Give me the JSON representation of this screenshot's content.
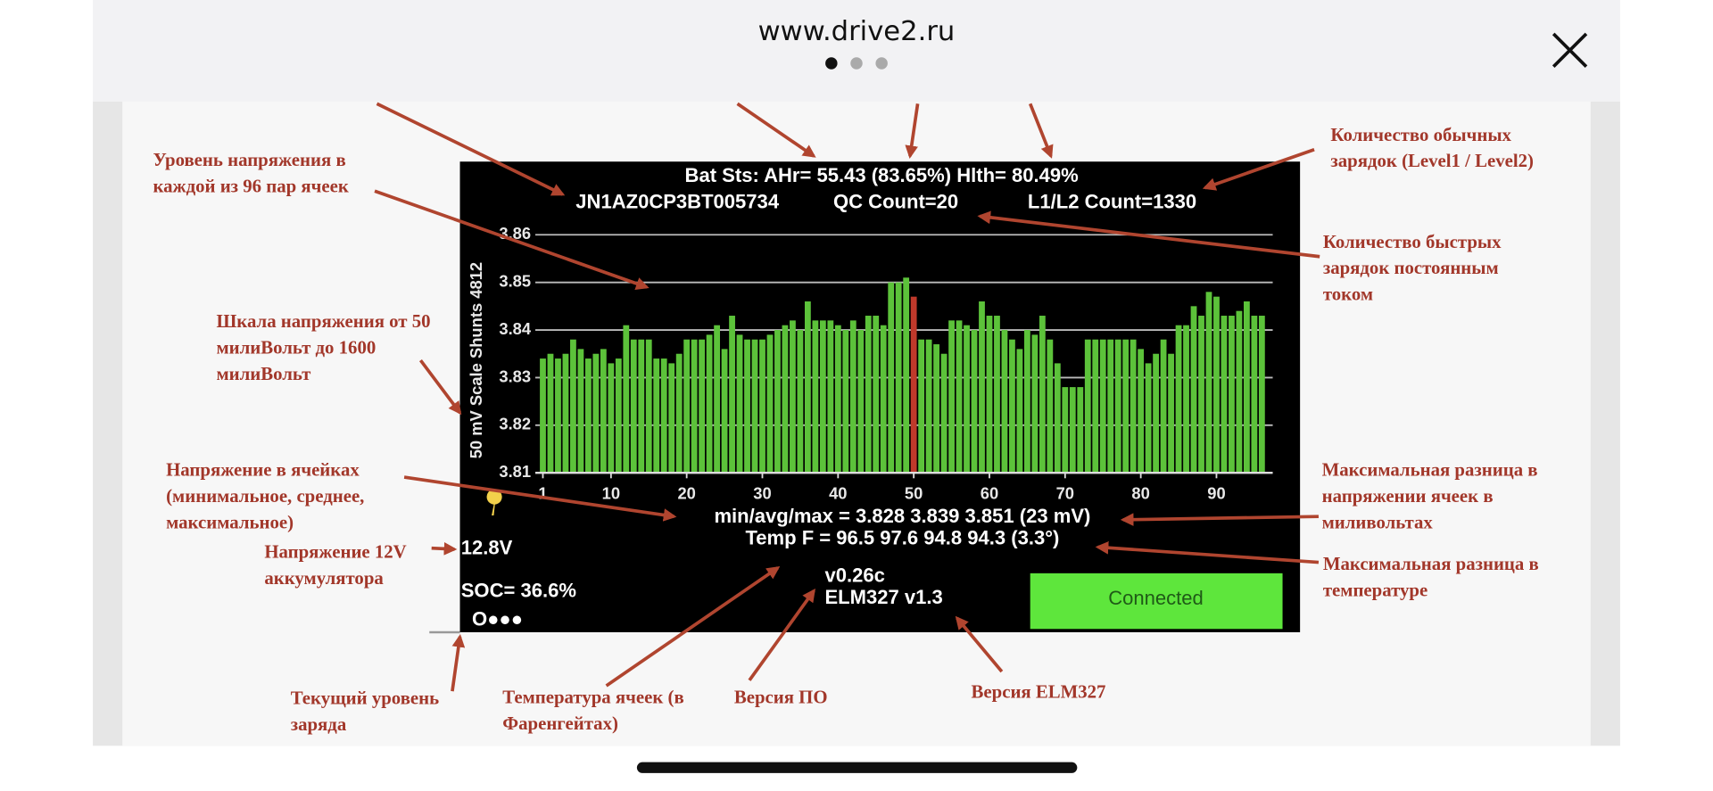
{
  "header": {
    "title": "www.drive2.ru"
  },
  "screen": {
    "status_line": "Bat Sts:  AHr= 55.43 (83.65%) Hlth= 80.49%",
    "vin": "JN1AZ0CP3BT005734",
    "qc_count": "QC Count=20",
    "l1l2_count": "L1/L2 Count=1330",
    "axis_label": "50 mV Scale   Shunts 4812",
    "minavgmax": "min/avg/max = 3.828 3.839 3.851  (23 mV)",
    "temp": "Temp F = 96.5  97.6  94.8  94.3  (3.3°)",
    "voltage_12v": "12.8V",
    "soc": "SOC= 36.6%",
    "indicator": "O●●●",
    "version": "v0.26c",
    "elm": "ELM327 v1.3",
    "button": "Connected"
  },
  "chart_data": {
    "type": "bar",
    "color": "#5cc23a",
    "highlight_cell": 50,
    "highlight_color": "#c0392b",
    "xlim": [
      0,
      97
    ],
    "xticks": [
      1,
      10,
      20,
      30,
      40,
      50,
      60,
      70,
      80,
      90
    ],
    "ylim": [
      3.81,
      3.86
    ],
    "yticks": [
      3.81,
      3.82,
      3.83,
      3.84,
      3.85,
      3.86
    ],
    "grid": true,
    "values": [
      3.834,
      3.835,
      3.834,
      3.835,
      3.838,
      3.836,
      3.834,
      3.835,
      3.836,
      3.833,
      3.834,
      3.841,
      3.838,
      3.838,
      3.838,
      3.834,
      3.834,
      3.833,
      3.835,
      3.838,
      3.838,
      3.838,
      3.839,
      3.841,
      3.836,
      3.843,
      3.839,
      3.838,
      3.838,
      3.838,
      3.839,
      3.84,
      3.841,
      3.842,
      3.84,
      3.846,
      3.842,
      3.842,
      3.842,
      3.841,
      3.84,
      3.842,
      3.84,
      3.843,
      3.843,
      3.841,
      3.85,
      3.85,
      3.851,
      3.847,
      3.838,
      3.838,
      3.837,
      3.835,
      3.842,
      3.842,
      3.841,
      3.84,
      3.846,
      3.843,
      3.843,
      3.84,
      3.838,
      3.836,
      3.84,
      3.839,
      3.843,
      3.838,
      3.833,
      3.828,
      3.828,
      3.828,
      3.838,
      3.838,
      3.838,
      3.838,
      3.838,
      3.838,
      3.838,
      3.836,
      3.833,
      3.835,
      3.838,
      3.835,
      3.841,
      3.841,
      3.845,
      3.843,
      3.848,
      3.847,
      3.843,
      3.843,
      3.844,
      3.846,
      3.843,
      3.843
    ]
  },
  "annotations": [
    {
      "lines": [
        "Уровень напряжения в",
        "каждой из 96 пар ячеек"
      ]
    },
    {
      "lines": [
        "Шкала напряжения от 50",
        "милиВольт до 1600",
        "милиВольт"
      ]
    },
    {
      "lines": [
        "Напряжение в ячейках",
        "(минимальное, среднее,",
        "максимальное)"
      ]
    },
    {
      "lines": [
        "Напряжение 12V",
        "аккумулятора"
      ]
    },
    {
      "lines": [
        "Текущий уровень",
        "заряда"
      ]
    },
    {
      "lines": [
        "Температура ячеек (в",
        "Фаренгейтах)"
      ]
    },
    {
      "lines": [
        "Версия ПО"
      ]
    },
    {
      "lines": [
        "Версия ELM327"
      ]
    },
    {
      "lines": [
        "Количество обычных",
        "зарядок (Level1 / Level2)"
      ]
    },
    {
      "lines": [
        "Количество быстрых",
        "зарядок постоянным",
        "током"
      ]
    },
    {
      "lines": [
        "Максимальная разница в",
        "напряжении ячеек в",
        "миливольтах"
      ]
    },
    {
      "lines": [
        "Максимальная разница в",
        "температуре"
      ]
    }
  ]
}
